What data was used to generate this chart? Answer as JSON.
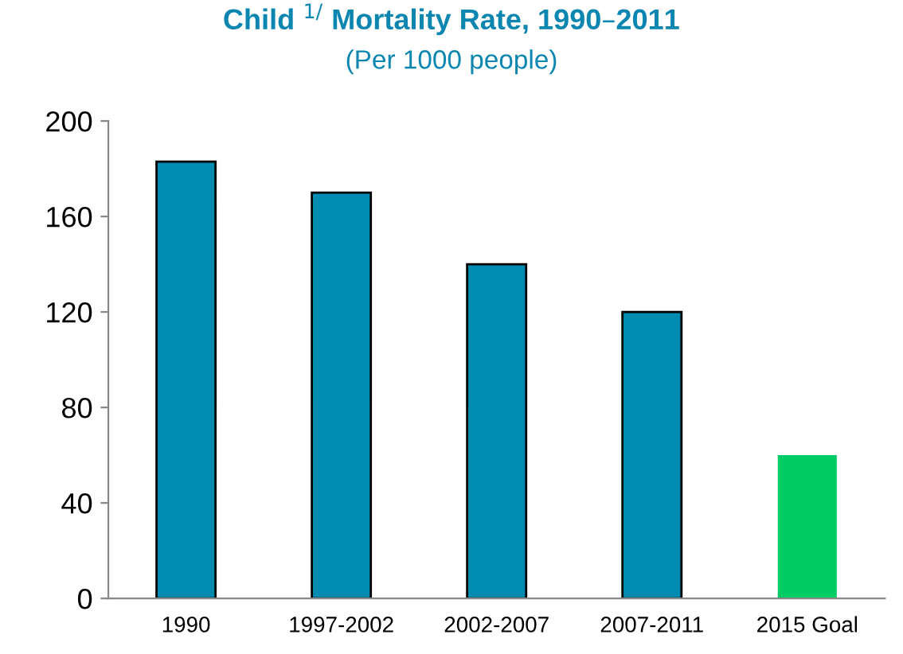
{
  "chart_data": {
    "type": "bar",
    "title": "Child $^{1/}$ Mortality Rate, 1990–2011",
    "subtitle": "(Per 1000 people)",
    "categories": [
      "1990",
      "1997-2002",
      "2002-2007",
      "2007-2011",
      "2015 Goal"
    ],
    "values": [
      183,
      170,
      140,
      120,
      60
    ],
    "colors": [
      "#008cb0",
      "#008cb0",
      "#008cb0",
      "#008cb0",
      "#00cc66"
    ],
    "ylim": [
      0,
      200
    ],
    "yticks": [
      0,
      40,
      80,
      120,
      160,
      200
    ],
    "grid": false,
    "legend": false
  }
}
